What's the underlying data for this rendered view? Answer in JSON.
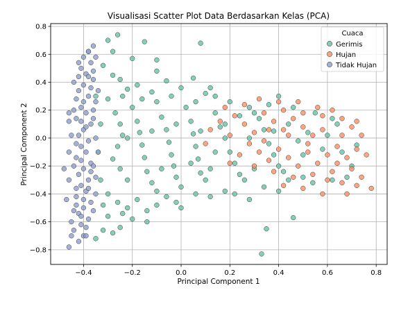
{
  "chart_data": {
    "type": "scatter",
    "title": "Visualisasi Scatter Plot Data Berdasarkan Kelas (PCA)",
    "xlabel": "Principal Component 1",
    "ylabel": "Principal Component 2",
    "xlim": [
      -0.535,
      0.845
    ],
    "ylim": [
      -0.905,
      0.82
    ],
    "xticks": [
      -0.4,
      -0.2,
      0.0,
      0.2,
      0.4,
      0.6,
      0.8
    ],
    "xtick_labels": [
      "−0.4",
      "−0.2",
      "0.0",
      "0.2",
      "0.4",
      "0.6",
      "0.8"
    ],
    "yticks": [
      -0.8,
      -0.6,
      -0.4,
      -0.2,
      0.0,
      0.2,
      0.4,
      0.6,
      0.8
    ],
    "ytick_labels": [
      "−0.8",
      "−0.6",
      "−0.4",
      "−0.2",
      "0.0",
      "0.2",
      "0.4",
      "0.6",
      "0.8"
    ],
    "grid": true,
    "legend": {
      "title": "Cuaca",
      "position": "top-right",
      "entries": [
        "Gerimis",
        "Hujan",
        "Tidak Hujan"
      ]
    },
    "series": [
      {
        "name": "Gerimis",
        "color": "#66c2a5",
        "points": [
          [
            -0.3,
            0.7
          ],
          [
            -0.26,
            0.74
          ],
          [
            -0.15,
            0.69
          ],
          [
            -0.1,
            0.56
          ],
          [
            -0.1,
            0.48
          ],
          [
            0.08,
            0.68
          ],
          [
            -0.2,
            0.57
          ],
          [
            -0.28,
            0.62
          ],
          [
            -0.25,
            0.42
          ],
          [
            -0.22,
            0.35
          ],
          [
            -0.18,
            0.38
          ],
          [
            -0.12,
            0.33
          ],
          [
            -0.06,
            0.41
          ],
          [
            0.0,
            0.36
          ],
          [
            0.05,
            0.43
          ],
          [
            0.1,
            0.32
          ],
          [
            0.14,
            0.3
          ],
          [
            0.2,
            0.26
          ],
          [
            0.28,
            0.22
          ],
          [
            0.36,
            0.24
          ],
          [
            0.4,
            0.3
          ],
          [
            0.46,
            0.22
          ],
          [
            0.55,
            0.18
          ],
          [
            0.62,
            0.14
          ],
          [
            -0.3,
            0.28
          ],
          [
            -0.27,
            0.18
          ],
          [
            -0.25,
            0.1
          ],
          [
            -0.24,
            0.02
          ],
          [
            -0.26,
            -0.06
          ],
          [
            -0.28,
            -0.15
          ],
          [
            -0.25,
            -0.22
          ],
          [
            -0.22,
            -0.3
          ],
          [
            -0.2,
            0.22
          ],
          [
            -0.18,
            0.12
          ],
          [
            -0.17,
            0.04
          ],
          [
            -0.16,
            -0.05
          ],
          [
            -0.15,
            -0.14
          ],
          [
            -0.14,
            -0.24
          ],
          [
            -0.12,
            -0.32
          ],
          [
            -0.1,
            -0.38
          ],
          [
            -0.1,
            0.26
          ],
          [
            -0.08,
            0.15
          ],
          [
            -0.06,
            0.06
          ],
          [
            -0.05,
            -0.03
          ],
          [
            -0.04,
            -0.12
          ],
          [
            -0.03,
            -0.2
          ],
          [
            -0.02,
            -0.28
          ],
          [
            0.0,
            -0.35
          ],
          [
            0.02,
            0.22
          ],
          [
            0.04,
            0.12
          ],
          [
            0.05,
            0.03
          ],
          [
            0.06,
            -0.06
          ],
          [
            0.07,
            -0.15
          ],
          [
            0.08,
            -0.25
          ],
          [
            0.1,
            -0.3
          ],
          [
            0.12,
            -0.22
          ],
          [
            0.14,
            0.18
          ],
          [
            0.16,
            0.08
          ],
          [
            0.18,
            0.0
          ],
          [
            0.2,
            -0.1
          ],
          [
            0.22,
            -0.18
          ],
          [
            0.24,
            -0.26
          ],
          [
            0.26,
            -0.3
          ],
          [
            0.3,
            -0.22
          ],
          [
            0.32,
            0.14
          ],
          [
            0.34,
            0.06
          ],
          [
            0.36,
            -0.04
          ],
          [
            0.38,
            -0.12
          ],
          [
            0.4,
            -0.2
          ],
          [
            0.42,
            -0.24
          ],
          [
            0.44,
            0.1
          ],
          [
            0.48,
            -0.02
          ],
          [
            0.5,
            -0.12
          ],
          [
            0.52,
            0.04
          ],
          [
            0.58,
            -0.08
          ],
          [
            0.6,
            0.02
          ],
          [
            0.66,
            -0.1
          ],
          [
            0.7,
            -0.2
          ],
          [
            0.72,
            -0.05
          ],
          [
            0.64,
            0.1
          ],
          [
            -0.3,
            -0.4
          ],
          [
            -0.26,
            -0.46
          ],
          [
            -0.22,
            -0.5
          ],
          [
            -0.18,
            -0.44
          ],
          [
            -0.14,
            -0.52
          ],
          [
            -0.1,
            -0.48
          ],
          [
            -0.06,
            -0.42
          ],
          [
            -0.02,
            -0.46
          ],
          [
            -0.3,
            -0.56
          ],
          [
            -0.28,
            -0.68
          ],
          [
            -0.25,
            -0.64
          ],
          [
            -0.2,
            -0.58
          ],
          [
            -0.14,
            -0.6
          ],
          [
            -0.35,
            -0.72
          ],
          [
            -0.32,
            -0.66
          ],
          [
            -0.24,
            -0.54
          ],
          [
            0.0,
            -0.5
          ],
          [
            0.06,
            -0.4
          ],
          [
            0.12,
            -0.42
          ],
          [
            0.18,
            -0.38
          ],
          [
            0.22,
            -0.4
          ],
          [
            0.28,
            -0.44
          ],
          [
            0.34,
            -0.35
          ],
          [
            0.46,
            -0.57
          ],
          [
            0.33,
            -0.83
          ],
          [
            0.35,
            -0.65
          ],
          [
            0.4,
            -0.38
          ],
          [
            0.44,
            -0.3
          ],
          [
            0.5,
            -0.28
          ],
          [
            0.54,
            -0.32
          ],
          [
            0.62,
            -0.3
          ],
          [
            0.68,
            -0.28
          ],
          [
            -0.22,
            0.0
          ],
          [
            -0.12,
            0.05
          ],
          [
            -0.02,
            0.1
          ],
          [
            0.08,
            0.05
          ],
          [
            0.18,
            0.1
          ],
          [
            0.28,
            0.0
          ],
          [
            0.38,
            0.05
          ],
          [
            -0.24,
            0.3
          ],
          [
            -0.16,
            0.28
          ],
          [
            -0.04,
            0.3
          ],
          [
            0.06,
            0.26
          ],
          [
            0.12,
            0.36
          ],
          [
            0.24,
            0.16
          ],
          [
            0.3,
            0.18
          ],
          [
            -0.28,
            0.45
          ],
          [
            -0.32,
            0.52
          ],
          [
            -0.35,
            0.3
          ],
          [
            -0.33,
            0.1
          ],
          [
            -0.34,
            -0.1
          ],
          [
            -0.33,
            -0.3
          ],
          [
            -0.32,
            -0.48
          ],
          [
            -0.08,
            -0.22
          ],
          [
            0.04,
            -0.18
          ],
          [
            0.14,
            -0.1
          ]
        ]
      },
      {
        "name": "Hujan",
        "color": "#fc8d62",
        "points": [
          [
            0.18,
            0.22
          ],
          [
            0.22,
            0.16
          ],
          [
            0.26,
            0.1
          ],
          [
            0.3,
            0.04
          ],
          [
            0.34,
            -0.02
          ],
          [
            0.38,
            0.12
          ],
          [
            0.42,
            0.2
          ],
          [
            0.46,
            0.14
          ],
          [
            0.5,
            0.08
          ],
          [
            0.54,
            0.02
          ],
          [
            0.58,
            0.16
          ],
          [
            0.62,
            0.2
          ],
          [
            0.66,
            0.14
          ],
          [
            0.7,
            0.08
          ],
          [
            0.74,
            0.02
          ],
          [
            0.72,
            -0.08
          ],
          [
            0.68,
            -0.14
          ],
          [
            0.64,
            -0.06
          ],
          [
            0.6,
            -0.12
          ],
          [
            0.56,
            -0.18
          ],
          [
            0.52,
            -0.1
          ],
          [
            0.48,
            -0.2
          ],
          [
            0.44,
            -0.14
          ],
          [
            0.4,
            -0.08
          ],
          [
            0.36,
            -0.16
          ],
          [
            0.32,
            -0.1
          ],
          [
            0.28,
            -0.04
          ],
          [
            0.24,
            -0.12
          ],
          [
            0.2,
            0.02
          ],
          [
            0.16,
            0.12
          ],
          [
            0.12,
            0.06
          ],
          [
            0.1,
            -0.04
          ],
          [
            0.26,
            0.24
          ],
          [
            0.34,
            0.18
          ],
          [
            0.42,
            0.06
          ],
          [
            0.5,
            0.18
          ],
          [
            0.58,
            0.06
          ],
          [
            0.66,
            0.02
          ],
          [
            0.7,
            -0.22
          ],
          [
            0.62,
            -0.24
          ],
          [
            0.54,
            -0.26
          ],
          [
            0.46,
            -0.28
          ],
          [
            0.38,
            -0.24
          ],
          [
            0.3,
            -0.2
          ],
          [
            0.6,
            -0.3
          ],
          [
            0.66,
            -0.32
          ],
          [
            0.72,
            -0.34
          ],
          [
            0.78,
            -0.36
          ],
          [
            0.68,
            -0.4
          ],
          [
            0.58,
            -0.4
          ],
          [
            0.5,
            -0.36
          ],
          [
            0.42,
            -0.34
          ],
          [
            0.74,
            -0.28
          ],
          [
            0.76,
            -0.12
          ],
          [
            0.72,
            0.12
          ],
          [
            0.56,
            0.22
          ],
          [
            0.48,
            0.26
          ],
          [
            0.4,
            0.26
          ],
          [
            0.32,
            0.28
          ],
          [
            0.44,
            0.02
          ],
          [
            0.36,
            0.06
          ],
          [
            0.52,
            -0.04
          ],
          [
            0.64,
            -0.18
          ],
          [
            0.2,
            -0.18
          ]
        ]
      },
      {
        "name": "Tidak Hujan",
        "color": "#8da0cb",
        "points": [
          [
            -0.36,
            0.66
          ],
          [
            -0.38,
            0.62
          ],
          [
            -0.4,
            0.58
          ],
          [
            -0.37,
            0.54
          ],
          [
            -0.41,
            0.5
          ],
          [
            -0.39,
            0.46
          ],
          [
            -0.36,
            0.42
          ],
          [
            -0.4,
            0.38
          ],
          [
            -0.42,
            0.34
          ],
          [
            -0.38,
            0.3
          ],
          [
            -0.35,
            0.26
          ],
          [
            -0.41,
            0.22
          ],
          [
            -0.39,
            0.18
          ],
          [
            -0.43,
            0.14
          ],
          [
            -0.37,
            0.1
          ],
          [
            -0.4,
            0.06
          ],
          [
            -0.42,
            0.02
          ],
          [
            -0.38,
            -0.02
          ],
          [
            -0.41,
            -0.06
          ],
          [
            -0.39,
            -0.1
          ],
          [
            -0.43,
            -0.14
          ],
          [
            -0.37,
            -0.18
          ],
          [
            -0.4,
            -0.22
          ],
          [
            -0.42,
            -0.26
          ],
          [
            -0.38,
            -0.3
          ],
          [
            -0.41,
            -0.34
          ],
          [
            -0.39,
            -0.38
          ],
          [
            -0.43,
            -0.42
          ],
          [
            -0.37,
            -0.46
          ],
          [
            -0.4,
            -0.5
          ],
          [
            -0.42,
            -0.54
          ],
          [
            -0.38,
            -0.58
          ],
          [
            -0.41,
            -0.62
          ],
          [
            -0.44,
            -0.66
          ],
          [
            -0.4,
            -0.7
          ],
          [
            -0.42,
            -0.74
          ],
          [
            -0.46,
            -0.78
          ],
          [
            -0.45,
            -0.6
          ],
          [
            -0.47,
            -0.44
          ],
          [
            -0.46,
            -0.3
          ],
          [
            -0.48,
            -0.22
          ],
          [
            -0.46,
            -0.1
          ],
          [
            -0.45,
            0.02
          ],
          [
            -0.46,
            0.12
          ],
          [
            -0.44,
            0.2
          ],
          [
            -0.46,
            0.18
          ],
          [
            -0.44,
            -0.52
          ],
          [
            -0.45,
            -0.7
          ],
          [
            -0.36,
            0.2
          ],
          [
            -0.35,
            0.0
          ],
          [
            -0.36,
            -0.2
          ],
          [
            -0.35,
            -0.4
          ],
          [
            -0.36,
            0.48
          ],
          [
            -0.34,
            0.34
          ],
          [
            -0.34,
            -0.1
          ],
          [
            -0.35,
            -0.28
          ],
          [
            -0.38,
            0.44
          ],
          [
            -0.4,
            0.26
          ],
          [
            -0.39,
            0.08
          ],
          [
            -0.41,
            -0.16
          ],
          [
            -0.38,
            -0.36
          ],
          [
            -0.41,
            -0.56
          ],
          [
            -0.43,
            -0.48
          ],
          [
            -0.39,
            -0.64
          ],
          [
            -0.37,
            0.36
          ],
          [
            -0.42,
            0.44
          ],
          [
            -0.36,
            0.14
          ],
          [
            -0.43,
            -0.04
          ],
          [
            -0.37,
            -0.24
          ],
          [
            -0.4,
            -0.44
          ],
          [
            -0.36,
            -0.52
          ],
          [
            -0.42,
            0.54
          ],
          [
            -0.38,
            0.62
          ],
          [
            -0.35,
            0.58
          ],
          [
            -0.44,
            0.4
          ],
          [
            -0.43,
            0.28
          ],
          [
            -0.44,
            -0.2
          ],
          [
            -0.43,
            -0.36
          ],
          [
            -0.39,
            -0.7
          ],
          [
            -0.41,
            0.12
          ]
        ]
      }
    ]
  }
}
